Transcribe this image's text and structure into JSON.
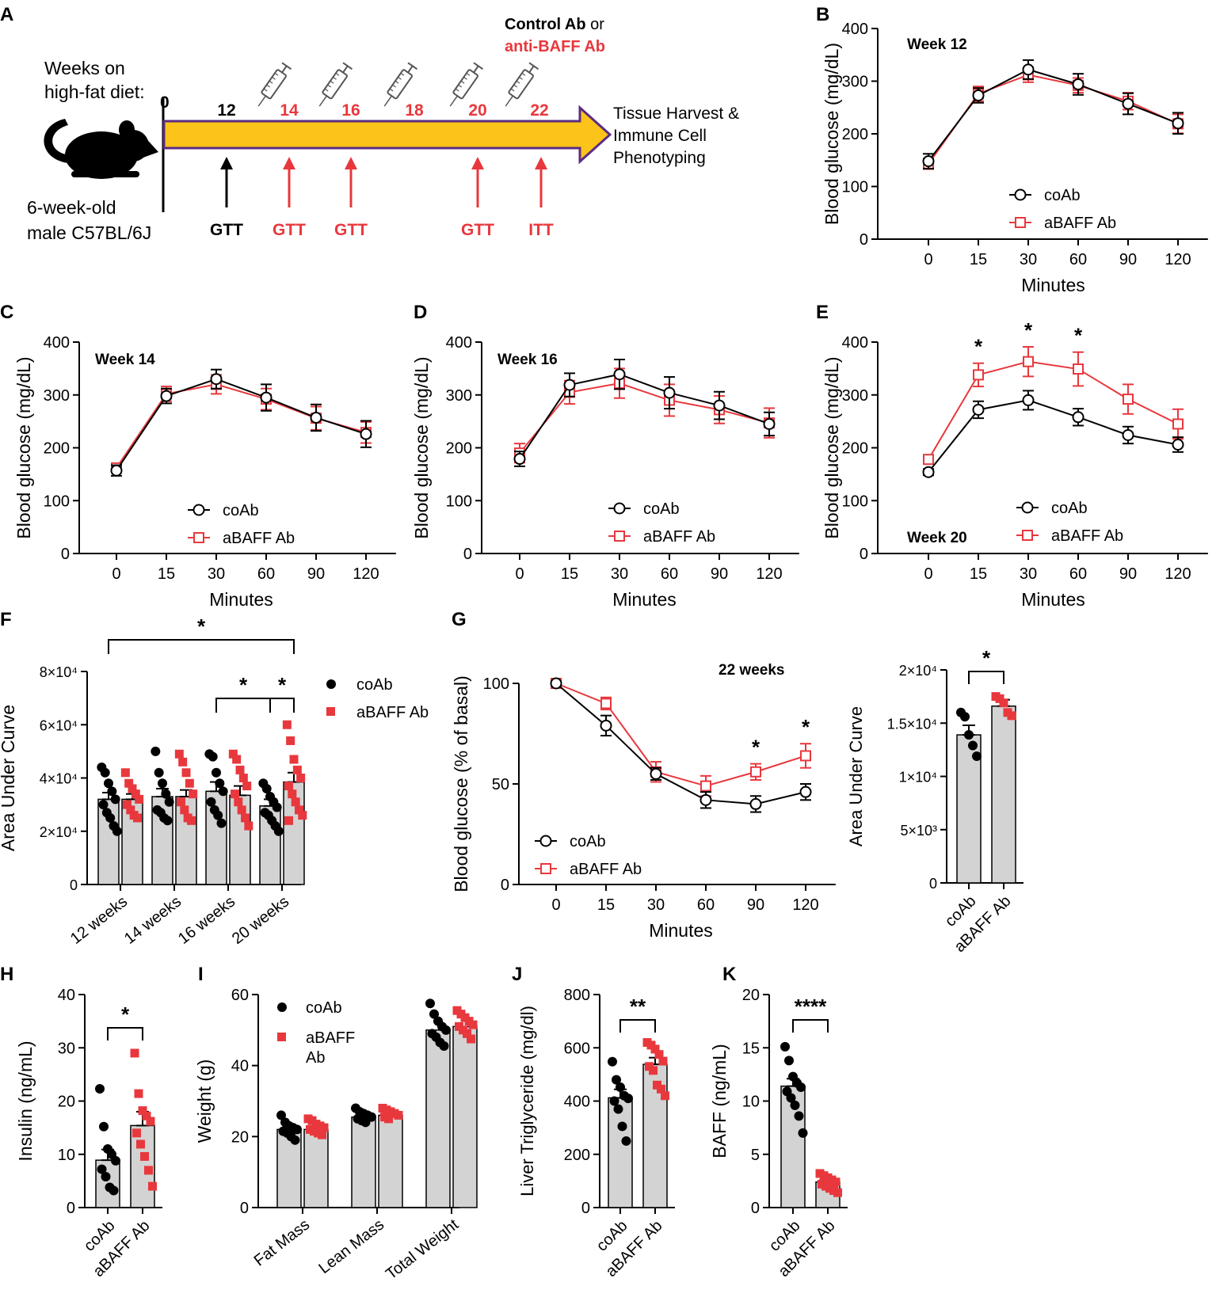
{
  "colors": {
    "coAb": "#000000",
    "aBAFF": "#e8383d",
    "bar": "#d3d3d3",
    "arrow_fill": "#fcc419",
    "arrow_stroke": "#5b2c83"
  },
  "panels": {
    "A": "A",
    "B": "B",
    "C": "C",
    "D": "D",
    "E": "E",
    "F": "F",
    "G": "G",
    "H": "H",
    "I": "I",
    "J": "J",
    "K": "K"
  },
  "schematic": {
    "weeks_label_1": "Weeks on",
    "weeks_label_2": "high-fat diet:",
    "mouse_label_1": "6-week-old",
    "mouse_label_2": "male C57BL/6J",
    "treatment_1": "Control Ab",
    "treatment_or": " or",
    "treatment_2": "anti-BAFF Ab",
    "start_week": "0",
    "weeks": [
      {
        "label": "12",
        "color": "black"
      },
      {
        "label": "14",
        "color": "red"
      },
      {
        "label": "16",
        "color": "red"
      },
      {
        "label": "18",
        "color": "red"
      },
      {
        "label": "20",
        "color": "red"
      },
      {
        "label": "22",
        "color": "red"
      }
    ],
    "end_label_1": "Tissue Harvest &",
    "end_label_2": "Immune Cell",
    "end_label_3": "Phenotyping",
    "tests": [
      {
        "label": "GTT",
        "color": "black"
      },
      {
        "label": "GTT",
        "color": "red"
      },
      {
        "label": "GTT",
        "color": "red"
      },
      {
        "label": "GTT",
        "color": "red"
      },
      {
        "label": "ITT",
        "color": "red"
      }
    ]
  },
  "legend": {
    "coAb": "coAb",
    "aBAFF": "aBAFF Ab",
    "aBAFF_line1": "aBAFF",
    "aBAFF_line2": "Ab"
  },
  "chart_data": [
    {
      "panel": "B",
      "type": "line",
      "title": "Week 12",
      "xlabel": "Minutes",
      "ylabel": "Blood glucose (mg/dL)",
      "categories": [
        "0",
        "15",
        "30",
        "60",
        "90",
        "120"
      ],
      "ylim": [
        0,
        400
      ],
      "yticks": [
        0,
        100,
        200,
        300,
        400
      ],
      "series": [
        {
          "name": "coAb",
          "values": [
            148,
            273,
            322,
            294,
            257,
            220
          ],
          "err": [
            14,
            14,
            18,
            20,
            20,
            20
          ]
        },
        {
          "name": "aBAFF Ab",
          "values": [
            143,
            276,
            312,
            292,
            262,
            219
          ],
          "err": [
            10,
            14,
            14,
            14,
            16,
            18
          ]
        }
      ]
    },
    {
      "panel": "C",
      "type": "line",
      "title": "Week 14",
      "xlabel": "Minutes",
      "ylabel": "Blood glucose (mg/dL)",
      "categories": [
        "0",
        "15",
        "30",
        "60",
        "90",
        "120"
      ],
      "ylim": [
        0,
        400
      ],
      "yticks": [
        0,
        100,
        200,
        300,
        400
      ],
      "series": [
        {
          "name": "coAb",
          "values": [
            157,
            298,
            330,
            295,
            257,
            226
          ],
          "err": [
            10,
            14,
            18,
            25,
            25,
            25
          ]
        },
        {
          "name": "aBAFF Ab",
          "values": [
            162,
            302,
            320,
            292,
            256,
            229
          ],
          "err": [
            8,
            14,
            18,
            20,
            22,
            20
          ]
        }
      ]
    },
    {
      "panel": "D",
      "type": "line",
      "title": "Week 16",
      "xlabel": "Minutes",
      "ylabel": "Blood glucose (mg/dL)",
      "categories": [
        "0",
        "15",
        "30",
        "60",
        "90",
        "120"
      ],
      "ylim": [
        0,
        400
      ],
      "yticks": [
        0,
        100,
        200,
        300,
        400
      ],
      "series": [
        {
          "name": "coAb",
          "values": [
            179,
            319,
            339,
            304,
            280,
            245
          ],
          "err": [
            14,
            22,
            28,
            30,
            26,
            22
          ]
        },
        {
          "name": "aBAFF Ab",
          "values": [
            190,
            305,
            322,
            290,
            272,
            247
          ],
          "err": [
            18,
            22,
            28,
            30,
            26,
            28
          ]
        }
      ]
    },
    {
      "panel": "E",
      "type": "line",
      "title": "Week 20",
      "xlabel": "Minutes",
      "ylabel": "Blood glucose (mg/dL)",
      "categories": [
        "0",
        "15",
        "30",
        "60",
        "90",
        "120"
      ],
      "ylim": [
        0,
        400
      ],
      "yticks": [
        0,
        100,
        200,
        300,
        400
      ],
      "significance": [
        {
          "index": 1,
          "label": "*"
        },
        {
          "index": 2,
          "label": "*"
        },
        {
          "index": 3,
          "label": "*"
        }
      ],
      "series": [
        {
          "name": "coAb",
          "values": [
            154,
            272,
            290,
            258,
            224,
            206
          ],
          "err": [
            6,
            16,
            18,
            16,
            16,
            14
          ]
        },
        {
          "name": "aBAFF Ab",
          "values": [
            178,
            338,
            363,
            349,
            292,
            245
          ],
          "err": [
            8,
            22,
            28,
            32,
            28,
            28
          ]
        }
      ]
    },
    {
      "panel": "F",
      "type": "bar",
      "xlabel": "",
      "ylabel": "Area Under Curve",
      "categories": [
        "12 weeks",
        "14 weeks",
        "16 weeks",
        "20 weeks"
      ],
      "ylim": [
        0,
        80000
      ],
      "yticks": [
        0,
        20000,
        40000,
        60000,
        80000
      ],
      "ytick_labels": [
        "0",
        "2×10⁴",
        "4×10⁴",
        "6×10⁴",
        "8×10⁴"
      ],
      "significance": [
        {
          "from": [
            0,
            0
          ],
          "to": [
            3,
            1
          ],
          "label": "*"
        },
        {
          "from": [
            2,
            0
          ],
          "to": [
            3,
            0
          ],
          "label": "*"
        },
        {
          "from": [
            3,
            0
          ],
          "to": [
            3,
            1
          ],
          "label": "*"
        }
      ],
      "series": [
        {
          "name": "coAb",
          "values": [
            32000,
            33000,
            35000,
            29500
          ],
          "err": [
            2500,
            3000,
            3500,
            2500
          ],
          "points": [
            [
              44000,
              42000,
              38000,
              35000,
              32000,
              30000,
              27000,
              25000,
              22000,
              20000
            ],
            [
              50000,
              42000,
              38000,
              34000,
              31000,
              28000,
              27000,
              25000,
              24000
            ],
            [
              49000,
              48000,
              42000,
              38000,
              35000,
              31000,
              28000,
              26000,
              23000
            ],
            [
              38000,
              36000,
              33000,
              31000,
              29000,
              27000,
              26000,
              24000,
              22000,
              20000
            ]
          ]
        },
        {
          "name": "aBAFF Ab",
          "values": [
            32000,
            33000,
            33500,
            38500
          ],
          "err": [
            2000,
            2500,
            3500,
            3500
          ],
          "points": [
            [
              42000,
              38000,
              36000,
              34000,
              32000,
              30000,
              28000,
              26000,
              25000
            ],
            [
              49000,
              46000,
              42000,
              38000,
              34000,
              31000,
              28000,
              25000,
              24000
            ],
            [
              49000,
              47000,
              43000,
              40000,
              37000,
              34000,
              31000,
              28000,
              25000,
              22000
            ],
            [
              60000,
              54000,
              47000,
              43000,
              40000,
              37000,
              34000,
              31000,
              28000,
              26000,
              24000
            ]
          ]
        }
      ]
    },
    {
      "panel": "G",
      "type": "line",
      "title": "22 weeks",
      "xlabel": "Minutes",
      "ylabel": "Blood glucose (% of basal)",
      "categories": [
        "0",
        "15",
        "30",
        "60",
        "90",
        "120"
      ],
      "ylim": [
        0,
        100
      ],
      "yticks": [
        0,
        50,
        100
      ],
      "significance": [
        {
          "index": 4,
          "label": "*"
        },
        {
          "index": 5,
          "label": "*"
        }
      ],
      "series": [
        {
          "name": "coAb",
          "values": [
            100,
            79,
            55,
            42,
            40,
            46
          ],
          "err": [
            1,
            5,
            3,
            4,
            4,
            4
          ]
        },
        {
          "name": "aBAFF Ab",
          "values": [
            100,
            90,
            56,
            49,
            56,
            64
          ],
          "err": [
            1,
            3,
            5,
            5,
            4,
            6
          ]
        }
      ]
    },
    {
      "panel": "G2",
      "type": "bar",
      "xlabel": "",
      "ylabel": "Area Under Curve",
      "categories": [
        "coAb",
        "aBAFF Ab"
      ],
      "ylim": [
        0,
        20000
      ],
      "yticks": [
        0,
        5000,
        10000,
        15000,
        20000
      ],
      "ytick_labels": [
        "0",
        "5×10³",
        "1×10⁴",
        "1.5×10⁴",
        "2×10⁴"
      ],
      "significance": [
        {
          "from": 0,
          "to": 1,
          "label": "*"
        }
      ],
      "values": [
        13900,
        16600
      ],
      "err": [
        900,
        600
      ],
      "points": [
        [
          16000,
          15600,
          13900,
          12900,
          11900
        ],
        [
          17500,
          17300,
          16900,
          16000,
          15700
        ]
      ]
    },
    {
      "panel": "H",
      "type": "bar",
      "xlabel": "",
      "ylabel": "Insulin (ng/mL)",
      "categories": [
        "coAb",
        "aBAFF Ab"
      ],
      "ylim": [
        0,
        40
      ],
      "yticks": [
        0,
        10,
        20,
        30,
        40
      ],
      "significance": [
        {
          "from": 0,
          "to": 1,
          "label": "*"
        }
      ],
      "values": [
        8.9,
        15.4
      ],
      "err": [
        2.0,
        2.6
      ],
      "points": [
        [
          22.3,
          15.2,
          11.0,
          10.0,
          8.8,
          7.2,
          5.8,
          3.8,
          3.2
        ],
        [
          29.0,
          21.4,
          18.2,
          17.2,
          16.2,
          14.0,
          11.9,
          9.6,
          7.0,
          4.0
        ]
      ]
    },
    {
      "panel": "I",
      "type": "bar",
      "xlabel": "",
      "ylabel": "Weight (g)",
      "categories": [
        "Fat Mass",
        "Lean Mass",
        "Total Weight"
      ],
      "ylim": [
        0,
        60
      ],
      "yticks": [
        0,
        20,
        40,
        60
      ],
      "series": [
        {
          "name": "coAb",
          "values": [
            22,
            25.5,
            50
          ],
          "points": [
            [
              26,
              24,
              23,
              22.5,
              22,
              21.5,
              21,
              20,
              19
            ],
            [
              28,
              27,
              26.5,
              26,
              25.5,
              25,
              24.5,
              24
            ],
            [
              57.5,
              54.5,
              52.5,
              51,
              50,
              49,
              48,
              46.5,
              45.5
            ]
          ]
        },
        {
          "name": "aBAFF Ab",
          "values": [
            22,
            26,
            51
          ],
          "points": [
            [
              25,
              24.5,
              23.5,
              23,
              22.5,
              22,
              21.5,
              21,
              20.5
            ],
            [
              28,
              27.5,
              27,
              26.5,
              26,
              25.5,
              25
            ],
            [
              55.5,
              54.5,
              53.5,
              52.5,
              51.5,
              51,
              50,
              49,
              47.5
            ]
          ]
        }
      ]
    },
    {
      "panel": "J",
      "type": "bar",
      "xlabel": "",
      "ylabel": "Liver Triglyceride (mg/dl)",
      "categories": [
        "coAb",
        "aBAFF Ab"
      ],
      "ylim": [
        0,
        800
      ],
      "yticks": [
        0,
        200,
        400,
        600,
        800
      ],
      "significance": [
        {
          "from": 0,
          "to": 1,
          "label": "**"
        }
      ],
      "values": [
        412,
        538
      ],
      "err": [
        32,
        25
      ],
      "points": [
        [
          548,
          480,
          452,
          420,
          410,
          400,
          370,
          305,
          250
        ],
        [
          620,
          610,
          595,
          575,
          550,
          530,
          515,
          460,
          445,
          420
        ]
      ]
    },
    {
      "panel": "K",
      "type": "bar",
      "xlabel": "",
      "ylabel": "BAFF (ng/mL)",
      "categories": [
        "coAb",
        "aBAFF Ab"
      ],
      "ylim": [
        0,
        20
      ],
      "yticks": [
        0,
        5,
        10,
        15,
        20
      ],
      "significance": [
        {
          "from": 0,
          "to": 1,
          "label": "****"
        }
      ],
      "values": [
        11.4,
        2.4
      ],
      "err": [
        0.7,
        0.3
      ],
      "points": [
        [
          15.1,
          13.8,
          12.3,
          11.7,
          11.3,
          10.9,
          10.3,
          9.6,
          8.6,
          7.0
        ],
        [
          3.2,
          3.0,
          2.8,
          2.6,
          2.4,
          2.2,
          2.0,
          1.8,
          1.6,
          1.4
        ]
      ]
    }
  ]
}
